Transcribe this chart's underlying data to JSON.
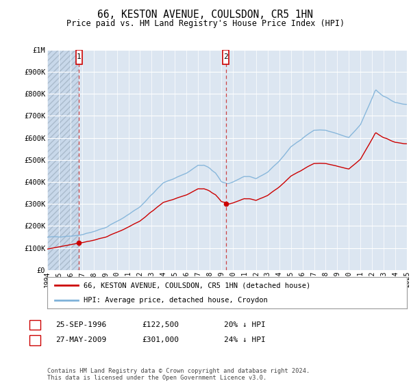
{
  "title": "66, KESTON AVENUE, COULSDON, CR5 1HN",
  "subtitle": "Price paid vs. HM Land Registry's House Price Index (HPI)",
  "background_color": "#ffffff",
  "plot_bg_color": "#dce6f1",
  "hatch_color": "#c8d8ea",
  "grid_color": "#b8cce4",
  "ylim": [
    0,
    1000000
  ],
  "yticks": [
    0,
    100000,
    200000,
    300000,
    400000,
    500000,
    600000,
    700000,
    800000,
    900000,
    1000000
  ],
  "ytick_labels": [
    "£0",
    "£100K",
    "£200K",
    "£300K",
    "£400K",
    "£500K",
    "£600K",
    "£700K",
    "£800K",
    "£900K",
    "£1M"
  ],
  "sale1_date": 1996.73,
  "sale1_price": 122500,
  "sale2_date": 2009.4,
  "sale2_price": 301000,
  "red_line_color": "#cc0000",
  "blue_line_color": "#7fb2d9",
  "legend_label_red": "66, KESTON AVENUE, COULSDON, CR5 1HN (detached house)",
  "legend_label_blue": "HPI: Average price, detached house, Croydon",
  "footer": "Contains HM Land Registry data © Crown copyright and database right 2024.\nThis data is licensed under the Open Government Licence v3.0.",
  "table_rows": [
    {
      "num": "1",
      "date": "25-SEP-1996",
      "price": "£122,500",
      "pct": "20% ↓ HPI"
    },
    {
      "num": "2",
      "date": "27-MAY-2009",
      "price": "£301,000",
      "pct": "24% ↓ HPI"
    }
  ]
}
